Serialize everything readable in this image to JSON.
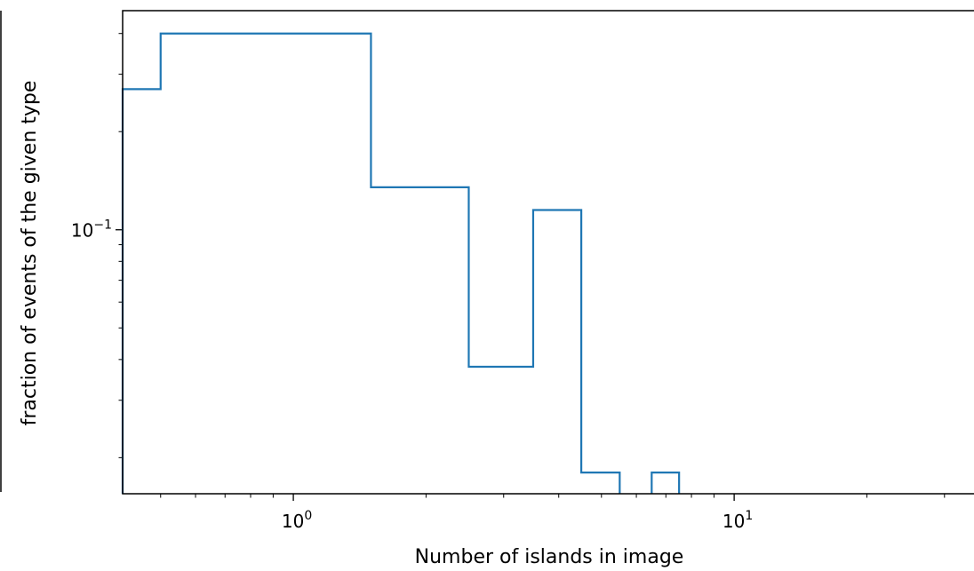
{
  "chart_data": {
    "type": "histogram-step",
    "title": "",
    "xlabel": "Number of islands in image",
    "ylabel": "fraction of events of the given type",
    "xscale": "log",
    "yscale": "log",
    "xlim": [
      0.41,
      35
    ],
    "ylim": [
      0.0155,
      0.47
    ],
    "x_ticks": [
      {
        "value": 1,
        "base": "10",
        "exp": "0"
      },
      {
        "value": 10,
        "base": "10",
        "exp": "1"
      }
    ],
    "y_ticks": [
      {
        "value": 0.1,
        "base": "10",
        "exp": "−1"
      }
    ],
    "bins": [
      {
        "x0": 0.41,
        "x1": 0.5,
        "y": 0.27
      },
      {
        "x0": 0.5,
        "x1": 1.5,
        "y": 0.4
      },
      {
        "x0": 1.5,
        "x1": 2.5,
        "y": 0.135
      },
      {
        "x0": 2.5,
        "x1": 3.5,
        "y": 0.038
      },
      {
        "x0": 3.5,
        "x1": 4.5,
        "y": 0.115
      },
      {
        "x0": 4.5,
        "x1": 5.5,
        "y": 0.018
      },
      {
        "x0": 6.5,
        "x1": 7.5,
        "y": 0.018
      }
    ],
    "line_color": "#1f77b4",
    "grid": false
  }
}
